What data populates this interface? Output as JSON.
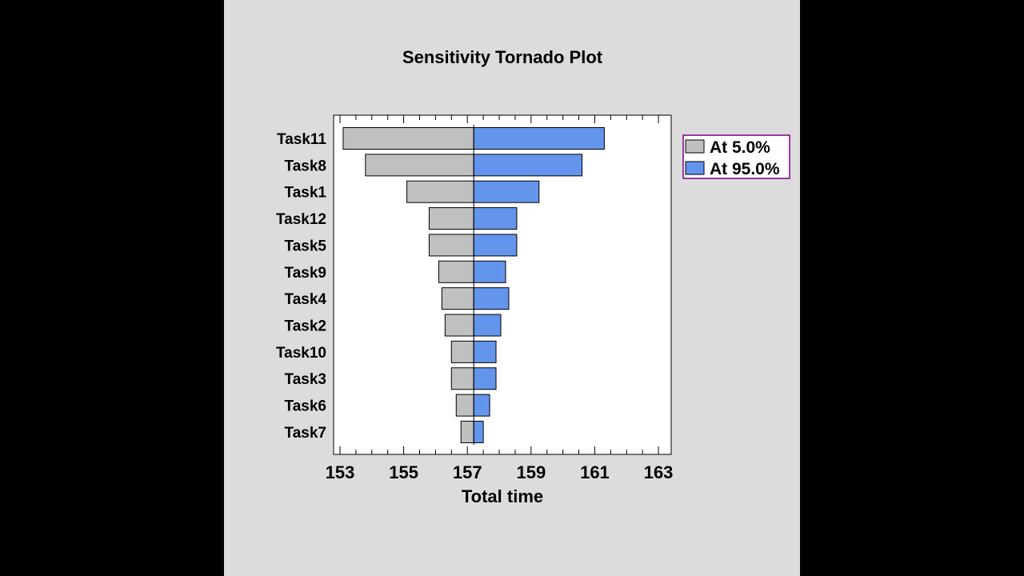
{
  "colors": {
    "background": "#000000",
    "panel": "#dcdcdc",
    "plot_area": "#ffffff",
    "low_bar": "#c0c0c0",
    "high_bar": "#6495ed",
    "legend_border": "#800080"
  },
  "chart_data": {
    "type": "bar",
    "orientation": "horizontal",
    "title": "Sensitivity Tornado Plot",
    "xlabel": "Total time",
    "ylabel": "",
    "baseline": 157.2,
    "xlim": [
      152.8,
      163.4
    ],
    "xticks": [
      153,
      155,
      157,
      159,
      161,
      163
    ],
    "legend": {
      "placement": "right-top"
    },
    "categories": [
      "Task11",
      "Task8",
      "Task1",
      "Task12",
      "Task5",
      "Task9",
      "Task4",
      "Task2",
      "Task10",
      "Task3",
      "Task6",
      "Task7"
    ],
    "series": [
      {
        "name": "At 5.0%",
        "values": [
          153.1,
          153.8,
          155.1,
          155.8,
          155.8,
          156.1,
          156.2,
          156.3,
          156.5,
          156.5,
          156.65,
          156.8
        ]
      },
      {
        "name": "At 95.0%",
        "values": [
          161.3,
          160.6,
          159.25,
          158.55,
          158.55,
          158.2,
          158.3,
          158.05,
          157.9,
          157.9,
          157.7,
          157.5
        ]
      }
    ]
  }
}
